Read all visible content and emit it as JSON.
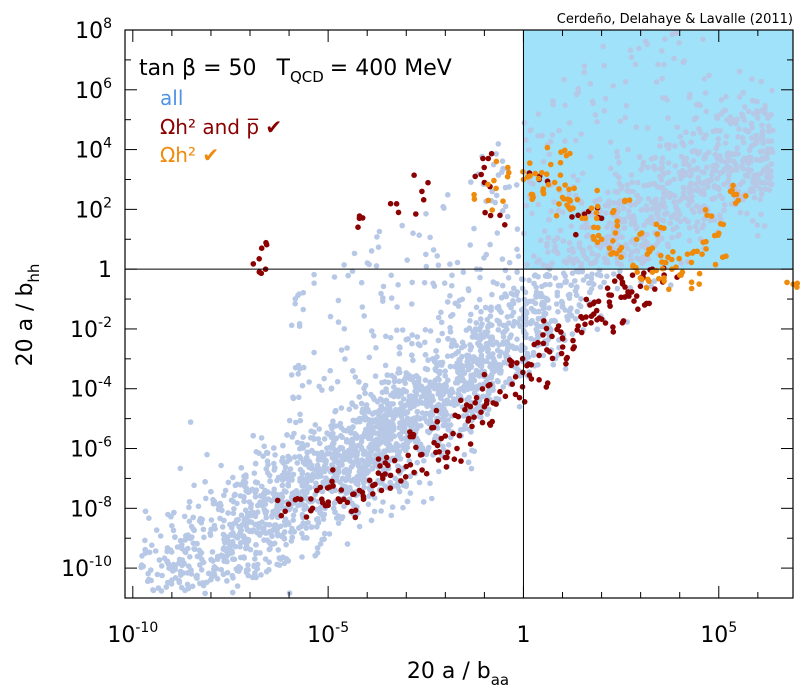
{
  "chart_data": {
    "type": "scatter",
    "credit": "Cerdeño, Delahaye & Lavalle (2011)",
    "annotation": {
      "tan_beta": "tan β = 50",
      "t_qcd_symbol": "T",
      "t_qcd_subscript": "QCD",
      "t_qcd_value": "= 400 MeV"
    },
    "xlabel": {
      "base": "20 a / b",
      "subscript": "aa"
    },
    "ylabel": {
      "base": "20 a / b",
      "subscript": "hh"
    },
    "xscale": "log10",
    "yscale": "log10",
    "xlim_log10": [
      -10.2,
      6.9
    ],
    "ylim_log10": [
      -11,
      8
    ],
    "x_ticks": [
      {
        "base": "10",
        "exp": "-10",
        "log10": -10
      },
      {
        "base": "10",
        "exp": "-5",
        "log10": -5
      },
      {
        "base": "1",
        "exp": "",
        "log10": 0
      },
      {
        "base": "10",
        "exp": "5",
        "log10": 5
      }
    ],
    "y_ticks": [
      {
        "base": "10",
        "exp": "8",
        "log10": 8
      },
      {
        "base": "10",
        "exp": "6",
        "log10": 6
      },
      {
        "base": "10",
        "exp": "4",
        "log10": 4
      },
      {
        "base": "10",
        "exp": "2",
        "log10": 2
      },
      {
        "base": "1",
        "exp": "",
        "log10": 0
      },
      {
        "base": "10",
        "exp": "-2",
        "log10": -2
      },
      {
        "base": "10",
        "exp": "-4",
        "log10": -4
      },
      {
        "base": "10",
        "exp": "-6",
        "log10": -6
      },
      {
        "base": "10",
        "exp": "-8",
        "log10": -8
      },
      {
        "base": "10",
        "exp": "-10",
        "log10": -10
      }
    ],
    "reference_lines": {
      "x_log10": 0,
      "y_log10": 0
    },
    "shaded_region": {
      "x_log10_min": 0,
      "y_log10_min": 0,
      "color": "#9fe2f9",
      "description_visible": false
    },
    "legend_position": "top-left",
    "series": [
      {
        "name": "all",
        "label": "all",
        "color": "#b6c8e6",
        "legend_color": "#4f94e6",
        "distribution": {
          "count": 3400,
          "band": [
            [
              -9.6,
              -10.3
            ],
            [
              -7,
              -8.6
            ],
            [
              -5,
              -6.8
            ],
            [
              -2,
              -4.2
            ],
            [
              0,
              -2.0
            ],
            [
              2,
              0.8
            ],
            [
              4,
              2.6
            ],
            [
              6,
              4.0
            ]
          ],
          "band_halfwidth_log10": 1.9,
          "band_extent_x_log10": [
            -9.8,
            6.4
          ],
          "outlier_count": 260
        }
      },
      {
        "name": "Omega_h2_and_pbar",
        "label": "Ωh² and p̅ ✔",
        "color": "#8b0000",
        "legend_color": "#8b0000",
        "points_log10": [
          [
            -5.4,
            -8.0
          ],
          [
            -5.0,
            -7.9
          ],
          [
            -4.6,
            -7.7
          ],
          [
            -4.2,
            -7.4
          ],
          [
            -3.8,
            -7.2
          ],
          [
            -3.4,
            -6.9
          ],
          [
            -3.0,
            -6.6
          ],
          [
            -2.6,
            -6.2
          ],
          [
            -2.2,
            -5.9
          ],
          [
            -1.8,
            -5.5
          ],
          [
            -1.4,
            -5.0
          ],
          [
            -1.0,
            -4.6
          ],
          [
            -0.6,
            -4.1
          ],
          [
            -0.2,
            -3.6
          ],
          [
            0.2,
            -3.2
          ],
          [
            0.6,
            -2.7
          ],
          [
            1.0,
            -2.3
          ],
          [
            1.4,
            -1.9
          ],
          [
            1.8,
            -1.5
          ],
          [
            2.2,
            -1.1
          ],
          [
            2.6,
            -0.6
          ],
          [
            3.0,
            -0.3
          ],
          [
            3.3,
            0.0
          ],
          [
            -6.1,
            -8.1
          ],
          [
            -5.7,
            -7.7
          ],
          [
            -4.9,
            -7.1
          ],
          [
            -4.1,
            -7.6
          ],
          [
            -3.5,
            -6.3
          ],
          [
            -2.8,
            -6.8
          ],
          [
            -2.3,
            -5.3
          ],
          [
            -1.7,
            -6.0
          ],
          [
            -1.2,
            -4.3
          ],
          [
            -0.8,
            -5.1
          ],
          [
            -0.3,
            -3.1
          ],
          [
            0.4,
            -3.7
          ],
          [
            0.9,
            -1.9
          ],
          [
            1.3,
            -2.6
          ],
          [
            1.7,
            -1.2
          ],
          [
            2.1,
            -1.8
          ],
          [
            2.5,
            -0.3
          ],
          [
            2.9,
            -0.9
          ],
          [
            3.6,
            -0.2
          ],
          [
            -5.2,
            -7.3
          ],
          [
            -4.4,
            -8.1
          ],
          [
            -3.6,
            -7.0
          ],
          [
            -2.9,
            -5.6
          ],
          [
            -2.0,
            -6.3
          ],
          [
            -1.5,
            -4.7
          ],
          [
            -0.9,
            -3.9
          ],
          [
            -0.1,
            -4.3
          ],
          [
            0.5,
            -2.2
          ],
          [
            1.1,
            -3.0
          ],
          [
            1.6,
            -1.6
          ],
          [
            2.3,
            -2.1
          ],
          [
            2.7,
            -0.9
          ],
          [
            3.1,
            -1.2
          ],
          [
            -6.7,
            0.7
          ],
          [
            -6.6,
            0.0
          ],
          [
            -3.2,
            1.9
          ],
          [
            -1.0,
            2.9
          ],
          [
            -0.9,
            3.7
          ],
          [
            -0.6,
            1.8
          ],
          [
            1.4,
            1.8
          ],
          [
            -4.2,
            1.7
          ],
          [
            -2.6,
            2.6
          ],
          [
            0.4,
            3.0
          ],
          [
            2.0,
            1.7
          ]
        ]
      },
      {
        "name": "Omega_h2",
        "label": "Ωh² ✔",
        "color": "#f08a0a",
        "legend_color": "#f08a0a",
        "points_log10": [
          [
            0.0,
            3.0
          ],
          [
            0.3,
            3.2
          ],
          [
            0.5,
            2.6
          ],
          [
            0.8,
            2.9
          ],
          [
            1.0,
            2.4
          ],
          [
            1.2,
            2.0
          ],
          [
            1.5,
            1.7
          ],
          [
            1.8,
            1.4
          ],
          [
            2.0,
            1.0
          ],
          [
            2.2,
            0.7
          ],
          [
            2.5,
            0.4
          ],
          [
            2.8,
            0.1
          ],
          [
            3.0,
            -0.3
          ],
          [
            3.3,
            -0.1
          ],
          [
            3.6,
            -0.4
          ],
          [
            3.8,
            0.0
          ],
          [
            4.0,
            -0.2
          ],
          [
            0.2,
            2.5
          ],
          [
            0.7,
            3.5
          ],
          [
            1.3,
            2.7
          ],
          [
            1.9,
            2.1
          ],
          [
            2.4,
            1.6
          ],
          [
            2.9,
            1.0
          ],
          [
            3.3,
            0.7
          ],
          [
            3.7,
            0.4
          ],
          [
            4.2,
            0.5
          ],
          [
            4.6,
            0.9
          ],
          [
            5.0,
            1.2
          ],
          [
            5.3,
            2.6
          ],
          [
            5.5,
            2.3
          ],
          [
            5.1,
            0.4
          ],
          [
            4.5,
            -0.5
          ],
          [
            -0.7,
            2.7
          ],
          [
            -0.9,
            2.3
          ],
          [
            -0.4,
            3.4
          ],
          [
            1.1,
            3.8
          ],
          [
            2.6,
            2.3
          ],
          [
            3.4,
            1.5
          ],
          [
            7.0,
            -0.6
          ],
          [
            4.7,
            1.8
          ]
        ]
      }
    ]
  }
}
